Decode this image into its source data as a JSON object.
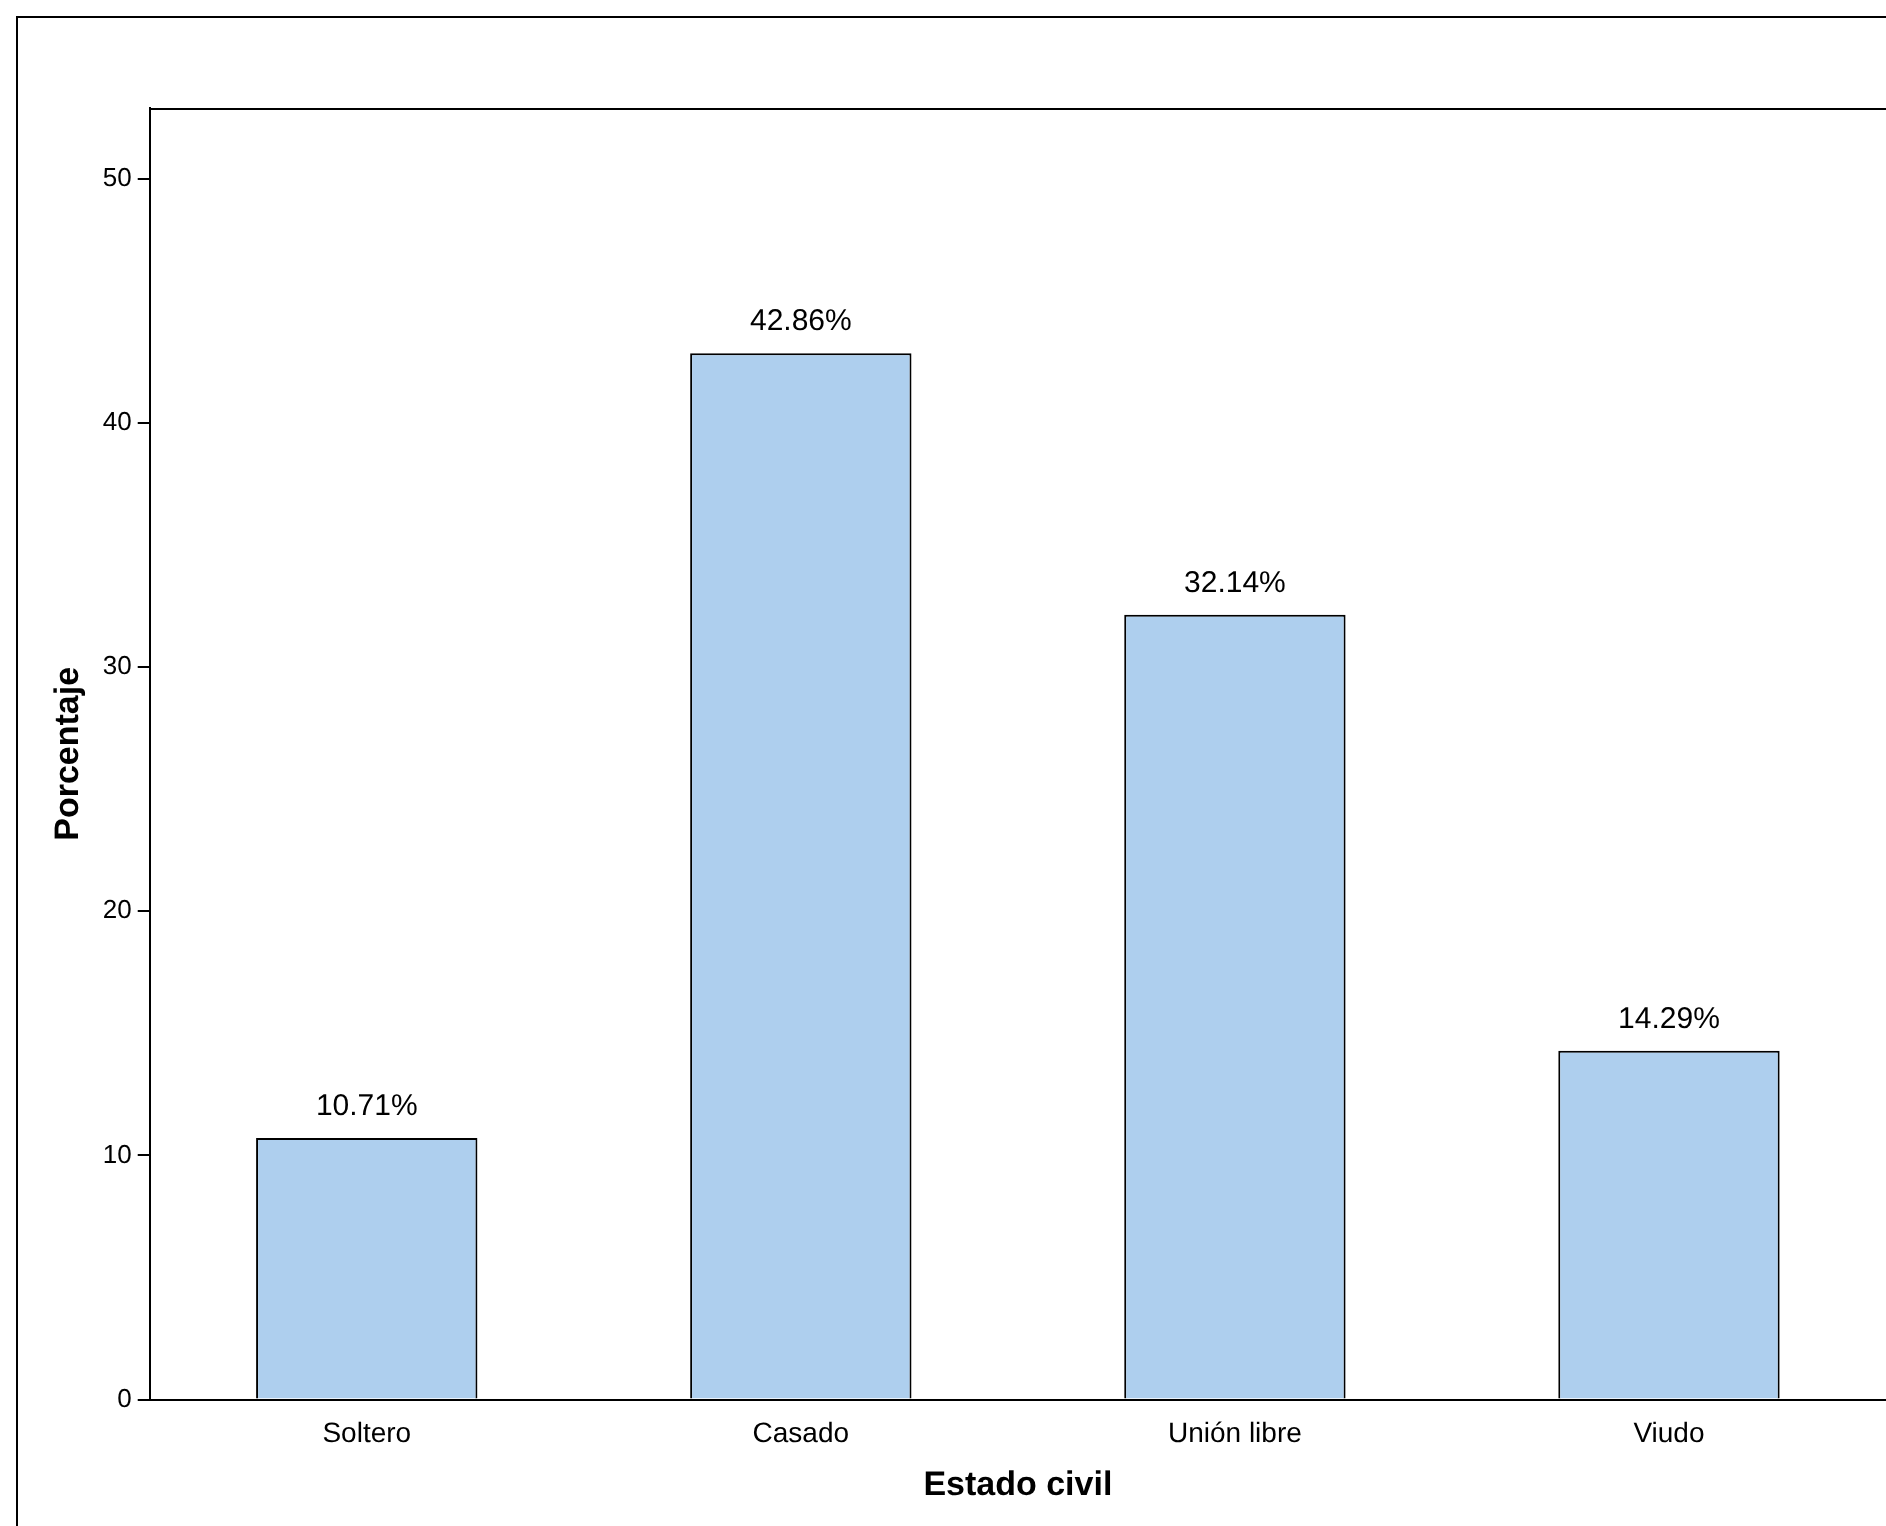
{
  "chart_data": {
    "type": "bar",
    "xlabel": "Estado civil",
    "ylabel": "Porcentaje",
    "categories": [
      "Soltero",
      "Casado",
      "Unión libre",
      "Viudo"
    ],
    "values": [
      10.71,
      42.86,
      32.14,
      14.29
    ],
    "value_labels": [
      "10.71%",
      "42.86%",
      "32.14%",
      "14.29%"
    ],
    "color": "#aecfee",
    "ylim": [
      0,
      52.9
    ],
    "yticks": [
      0,
      10,
      20,
      30,
      40,
      50
    ],
    "grid": false,
    "legend": false
  }
}
